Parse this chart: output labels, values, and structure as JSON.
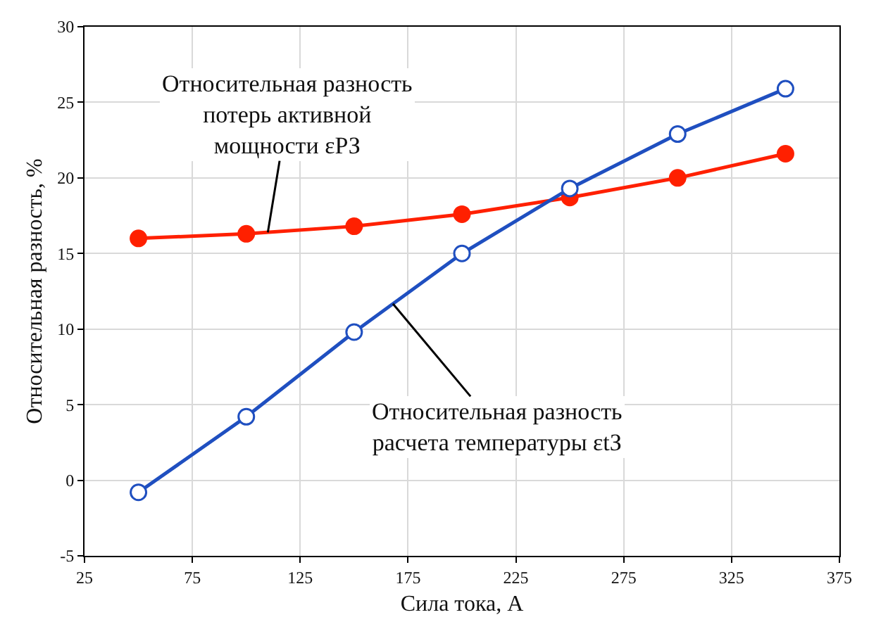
{
  "chart_data": {
    "type": "line",
    "xlabel": "Сила тока, А",
    "ylabel": "Относительная разность, %",
    "x": [
      50,
      100,
      150,
      200,
      250,
      300,
      350
    ],
    "series": [
      {
        "name": "Относительная разность\nпотерь активной\nмощности εРЗ",
        "color": "#ff2000",
        "values": [
          16.0,
          16.3,
          16.8,
          17.6,
          18.7,
          20.0,
          21.6
        ]
      },
      {
        "name": "Относительная разность\nрасчета температуры εtЗ",
        "color": "#1f4fc0",
        "values": [
          -0.8,
          4.2,
          9.8,
          15.0,
          19.3,
          22.9,
          25.9
        ]
      }
    ],
    "xlim": [
      25,
      375
    ],
    "xticks": [
      25,
      75,
      125,
      175,
      225,
      275,
      325,
      375
    ],
    "ylim": [
      -5,
      30
    ],
    "yticks": [
      -5,
      0,
      5,
      10,
      15,
      20,
      25,
      30
    ],
    "grid": true,
    "marker": "circle",
    "line_style": "solid"
  }
}
